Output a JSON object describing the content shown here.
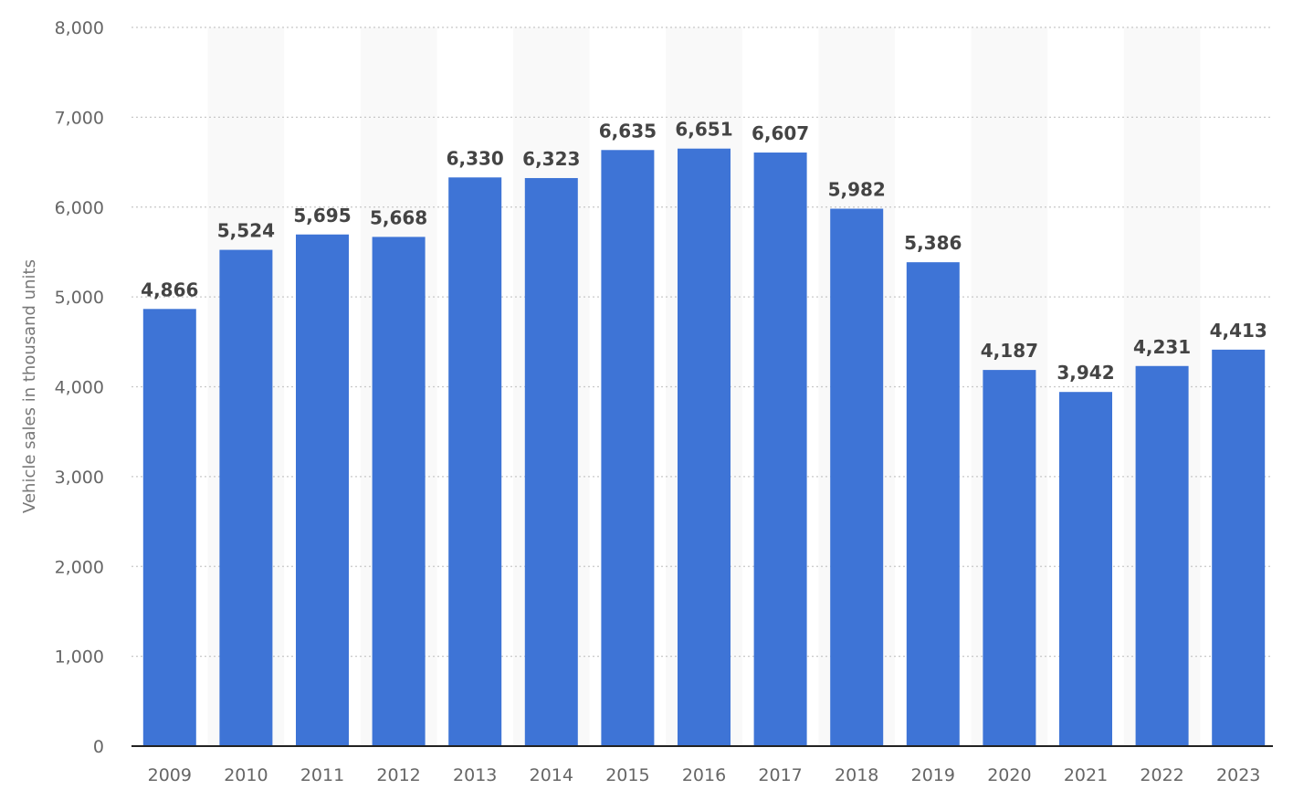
{
  "chart_data": {
    "type": "bar",
    "title": "",
    "xlabel": "",
    "ylabel": "Vehicle sales in thousand units",
    "ylim": [
      0,
      8000
    ],
    "yticks": [
      0,
      1000,
      2000,
      3000,
      4000,
      5000,
      6000,
      7000,
      8000
    ],
    "ytick_labels": [
      "0",
      "1,000",
      "2,000",
      "3,000",
      "4,000",
      "5,000",
      "6,000",
      "7,000",
      "8,000"
    ],
    "categories": [
      "2009",
      "2010",
      "2011",
      "2012",
      "2013",
      "2014",
      "2015",
      "2016",
      "2017",
      "2018",
      "2019",
      "2020",
      "2021",
      "2022",
      "2023"
    ],
    "values": [
      4866,
      5524,
      5695,
      5668,
      6330,
      6323,
      6635,
      6651,
      6607,
      5982,
      5386,
      4187,
      3942,
      4231,
      4413
    ],
    "value_labels": [
      "4,866",
      "5,524",
      "5,695",
      "5,668",
      "6,330",
      "6,323",
      "6,635",
      "6,651",
      "6,607",
      "5,982",
      "5,386",
      "4,187",
      "3,942",
      "4,231",
      "4,413"
    ],
    "grid": true,
    "legend": "none",
    "colors": {
      "bar": "#3e74d6",
      "band": "#f9f9f9"
    }
  }
}
